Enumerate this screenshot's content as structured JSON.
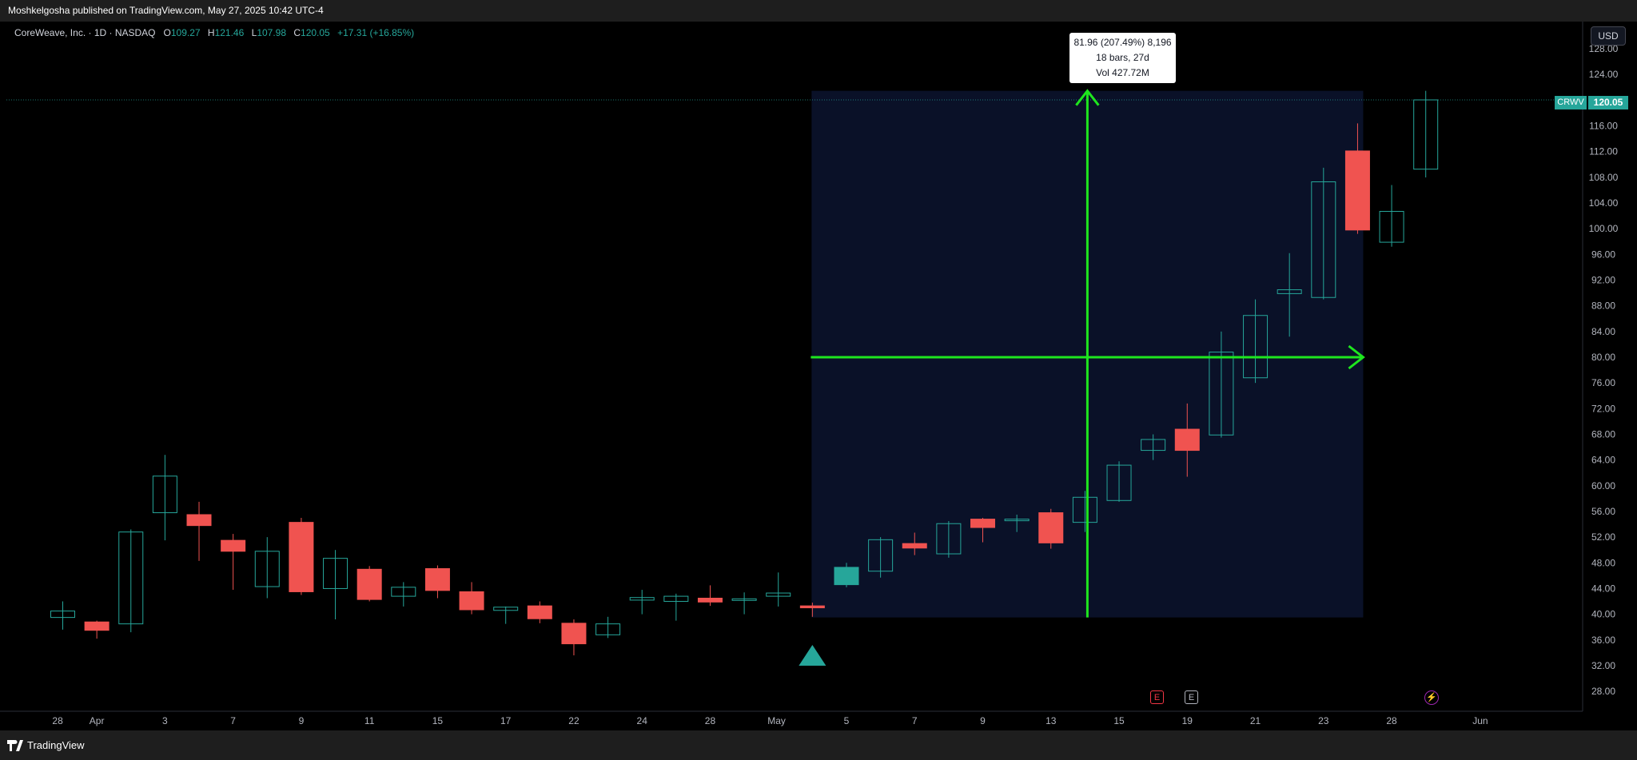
{
  "header": {
    "published": "Moshkelgosha published on TradingView.com, May 27, 2025 10:42 UTC-4"
  },
  "symbol_info": {
    "title": "CoreWeave, Inc. · 1D · NASDAQ",
    "o_label": "O",
    "o_value": "109.27",
    "h_label": "H",
    "h_value": "121.46",
    "l_label": "L",
    "l_value": "107.98",
    "c_label": "C",
    "c_value": "120.05",
    "change": "+17.31 (+16.85%)"
  },
  "price_scale": {
    "currency": "USD",
    "symbol_tag": "CRWV",
    "last_price": "120.05"
  },
  "measure_tooltip": {
    "line1": "81.96 (207.49%) 8,196",
    "line2": "18 bars, 27d",
    "line3": "Vol 427.72M"
  },
  "events": {
    "earnings_1": "E",
    "earnings_2": "E",
    "dividend": "⚡"
  },
  "footer": {
    "brand": "TradingView"
  },
  "colors": {
    "up": "#26a69a",
    "down": "#f05350",
    "measure_fill": "#0a1128",
    "measure_lines": "#1ee61e",
    "background": "#000000"
  },
  "chart_data": {
    "type": "candlestick",
    "symbol": "CRWV",
    "ylim": [
      26,
      130
    ],
    "y_ticks": [
      28,
      32,
      36,
      40,
      44,
      48,
      52,
      56,
      60,
      64,
      68,
      72,
      76,
      80,
      84,
      88,
      92,
      96,
      100,
      104,
      108,
      112,
      116,
      120,
      124,
      128
    ],
    "x_ticks": [
      "28",
      "Apr",
      "3",
      "7",
      "9",
      "11",
      "15",
      "17",
      "22",
      "24",
      "28",
      "May",
      "5",
      "7",
      "9",
      "13",
      "15",
      "19",
      "21",
      "23",
      "28",
      "Jun"
    ],
    "candles": [
      {
        "o": 39.5,
        "h": 42,
        "l": 37.6,
        "c": 40.5
      },
      {
        "o": 38.8,
        "h": 39,
        "l": 36.2,
        "c": 37.5
      },
      {
        "o": 38.5,
        "h": 53.2,
        "l": 37.2,
        "c": 52.8
      },
      {
        "o": 55.8,
        "h": 64.8,
        "l": 51.5,
        "c": 61.5
      },
      {
        "o": 55.5,
        "h": 57.5,
        "l": 48.3,
        "c": 53.8
      },
      {
        "o": 51.5,
        "h": 52.5,
        "l": 43.8,
        "c": 49.8
      },
      {
        "o": 44.3,
        "h": 52,
        "l": 42.5,
        "c": 49.8
      },
      {
        "o": 54.3,
        "h": 55,
        "l": 43,
        "c": 43.5
      },
      {
        "o": 44,
        "h": 50,
        "l": 39.2,
        "c": 48.7
      },
      {
        "o": 47,
        "h": 47.5,
        "l": 42,
        "c": 42.3
      },
      {
        "o": 42.8,
        "h": 45,
        "l": 41.2,
        "c": 44.2
      },
      {
        "o": 47.1,
        "h": 47.6,
        "l": 42.5,
        "c": 43.7
      },
      {
        "o": 43.5,
        "h": 45,
        "l": 40,
        "c": 40.7
      },
      {
        "o": 40.6,
        "h": 41.2,
        "l": 38.5,
        "c": 41.1
      },
      {
        "o": 41.3,
        "h": 42,
        "l": 38.6,
        "c": 39.3
      },
      {
        "o": 38.6,
        "h": 39.2,
        "l": 33.6,
        "c": 35.4
      },
      {
        "o": 36.8,
        "h": 39.6,
        "l": 36.3,
        "c": 38.5
      },
      {
        "o": 42.2,
        "h": 43.8,
        "l": 40,
        "c": 42.6
      },
      {
        "o": 42,
        "h": 43.2,
        "l": 39,
        "c": 42.8
      },
      {
        "o": 42.5,
        "h": 44.5,
        "l": 41.3,
        "c": 41.9
      },
      {
        "o": 42.3,
        "h": 43.4,
        "l": 40,
        "c": 42.4
      },
      {
        "o": 42.8,
        "h": 46.5,
        "l": 41.2,
        "c": 43.3
      },
      {
        "o": 41.3,
        "h": 41.8,
        "l": 39.6,
        "c": 41
      },
      {
        "o": 44.6,
        "h": 48,
        "l": 44.2,
        "c": 47.3
      },
      {
        "o": 46.7,
        "h": 52,
        "l": 45.7,
        "c": 51.6
      },
      {
        "o": 51,
        "h": 52.7,
        "l": 49.2,
        "c": 50.3
      },
      {
        "o": 49.4,
        "h": 54.5,
        "l": 48.8,
        "c": 54.1
      },
      {
        "o": 54.8,
        "h": 55,
        "l": 51.2,
        "c": 53.5
      },
      {
        "o": 54.6,
        "h": 55.5,
        "l": 52.8,
        "c": 54.8
      },
      {
        "o": 55.8,
        "h": 56.4,
        "l": 50.2,
        "c": 51.1
      },
      {
        "o": 54.3,
        "h": 59.2,
        "l": 52.8,
        "c": 58.2
      },
      {
        "o": 57.7,
        "h": 63.8,
        "l": 57.5,
        "c": 63.2
      },
      {
        "o": 65.5,
        "h": 68,
        "l": 64,
        "c": 67.2
      },
      {
        "o": 68.8,
        "h": 72.8,
        "l": 61.4,
        "c": 65.5
      },
      {
        "o": 67.9,
        "h": 84,
        "l": 67.5,
        "c": 80.8
      },
      {
        "o": 76.8,
        "h": 89,
        "l": 76,
        "c": 86.5
      },
      {
        "o": 89.9,
        "h": 96.2,
        "l": 83.2,
        "c": 90.5
      },
      {
        "o": 89.3,
        "h": 109.5,
        "l": 89,
        "c": 107.3
      },
      {
        "o": 112.1,
        "h": 116.4,
        "l": 99.2,
        "c": 99.8
      },
      {
        "o": 97.9,
        "h": 106.8,
        "l": 97.2,
        "c": 102.7
      },
      {
        "o": 109.27,
        "h": 121.46,
        "l": 107.98,
        "c": 120.05
      }
    ]
  }
}
